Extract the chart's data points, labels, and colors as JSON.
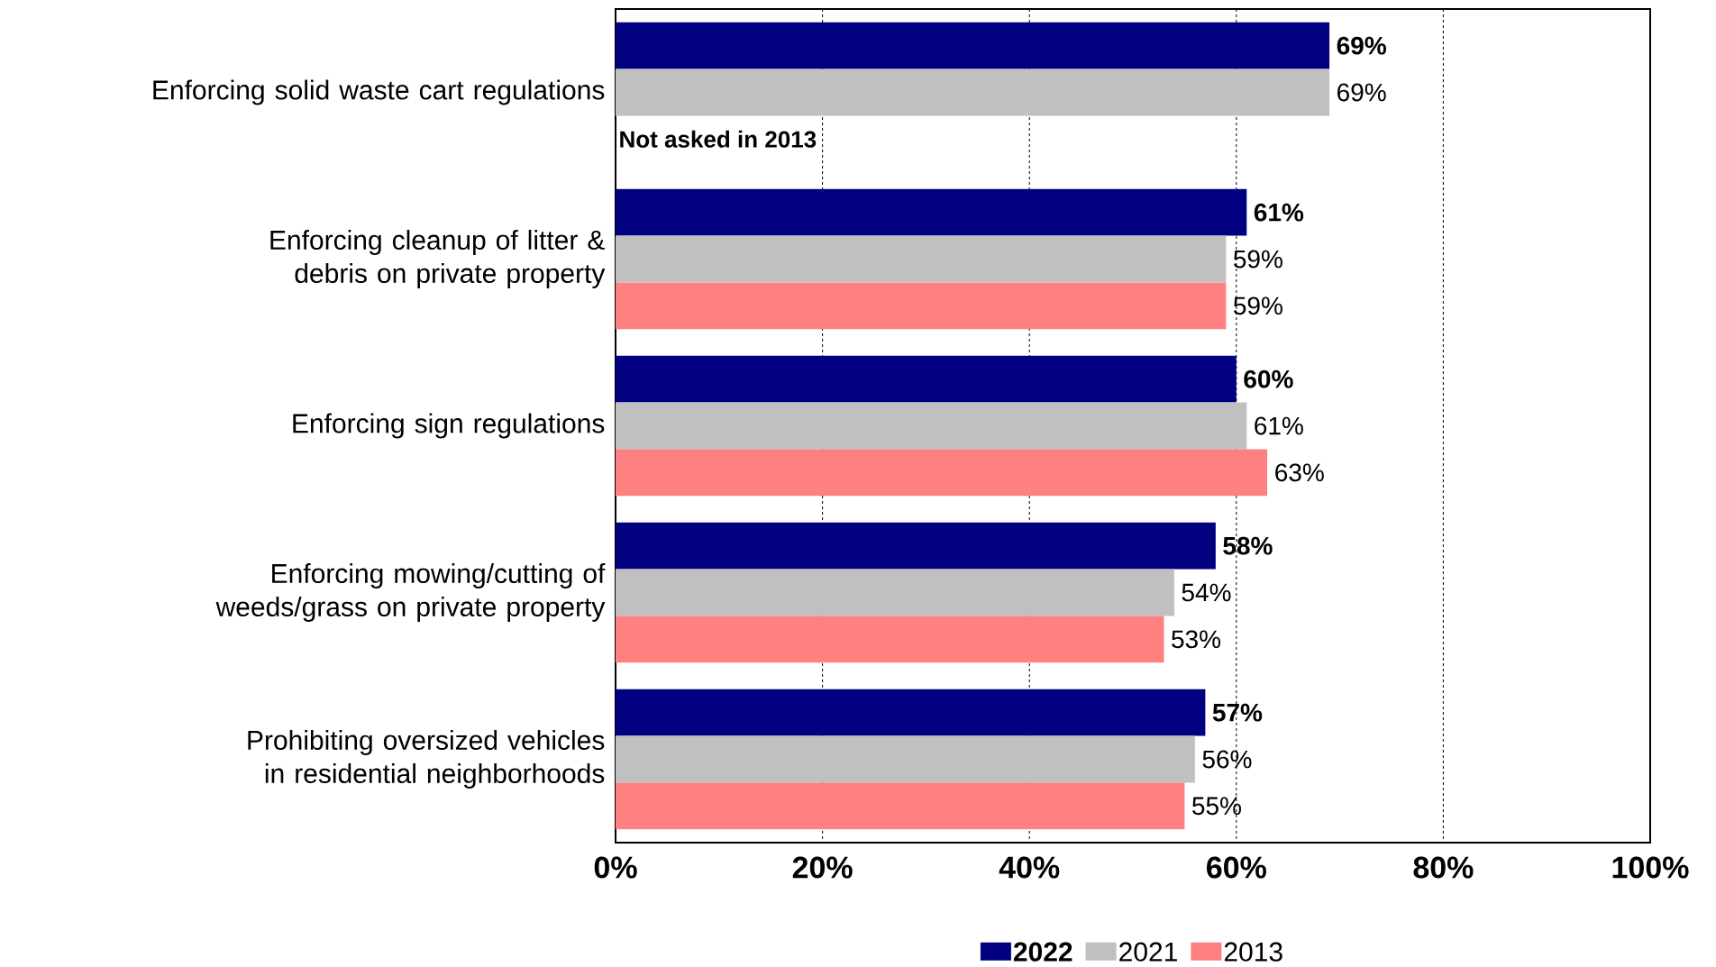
{
  "chart_data": {
    "type": "bar",
    "orientation": "horizontal",
    "categories": [
      "Enforcing solid waste cart regulations",
      "Enforcing cleanup of litter & debris on private property",
      "Enforcing sign regulations",
      "Enforcing mowing/cutting of weeds/grass on private property",
      "Prohibiting oversized vehicles in residential neighborhoods"
    ],
    "series": [
      {
        "name": "2022",
        "color": "#000080",
        "values": [
          69,
          61,
          60,
          58,
          57
        ],
        "value_labels": [
          "69%",
          "61%",
          "60%",
          "58%",
          "57%"
        ]
      },
      {
        "name": "2021",
        "color": "#c0c0c0",
        "values": [
          69,
          59,
          61,
          54,
          56
        ],
        "value_labels": [
          "69%",
          "59%",
          "61%",
          "54%",
          "56%"
        ]
      },
      {
        "name": "2013",
        "color": "#ff8080",
        "values": [
          null,
          59,
          63,
          53,
          55
        ],
        "value_labels": [
          null,
          "59%",
          "63%",
          "53%",
          "55%"
        ]
      }
    ],
    "xlim": [
      0,
      100
    ],
    "xticks": [
      {
        "value": 0,
        "label": "0%"
      },
      {
        "value": 20,
        "label": "20%"
      },
      {
        "value": 40,
        "label": "40%"
      },
      {
        "value": 60,
        "label": "60%"
      },
      {
        "value": 80,
        "label": "80%"
      },
      {
        "value": 100,
        "label": "100%"
      }
    ],
    "grid": "x",
    "legend": "bottom",
    "annotations": [
      "Not asked in 2013"
    ]
  }
}
